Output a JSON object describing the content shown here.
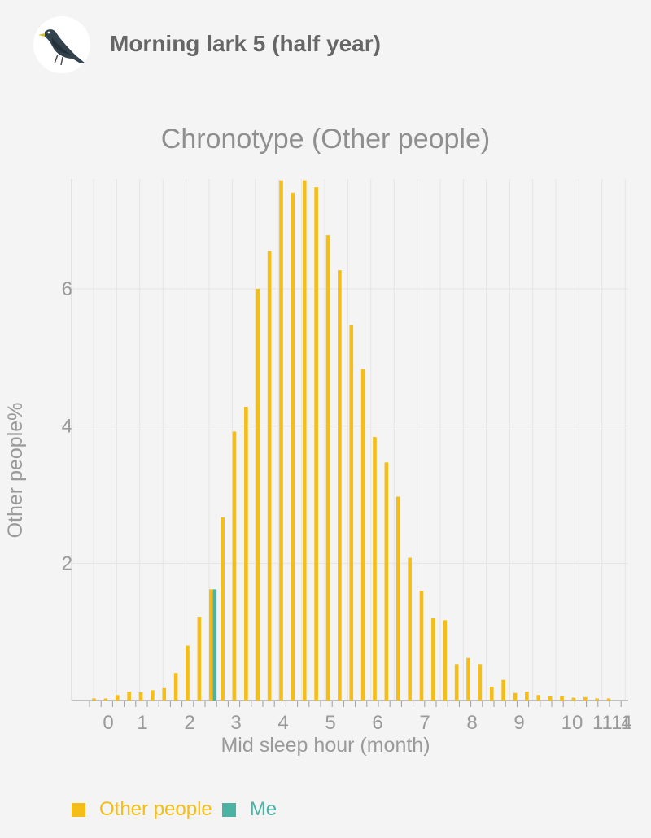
{
  "header": {
    "title": "Morning lark 5 (half year)",
    "avatar_icon": "blackbird-icon"
  },
  "colors": {
    "other": "#f5bd17",
    "me": "#4cb3a4",
    "text": "#9a9a9a",
    "grid": "#e4e4e4"
  },
  "chart_data": {
    "type": "bar",
    "title": "Chronotype (Other people)",
    "xlabel": "Mid sleep hour (month)",
    "ylabel": "Other people%",
    "ylim": [
      0,
      7.6
    ],
    "yticks": [
      2,
      4,
      6
    ],
    "xticks": [
      "0",
      "1",
      "2",
      "3",
      "4",
      "5",
      "6",
      "7",
      "8",
      "9",
      "10",
      "1111",
      "4"
    ],
    "grid": true,
    "legend_position": "bottom-left",
    "series": [
      {
        "name": "Other people",
        "values": [
          0.03,
          0.03,
          0.08,
          0.13,
          0.12,
          0.15,
          0.18,
          0.4,
          0.8,
          1.22,
          1.62,
          2.67,
          3.92,
          4.28,
          6.0,
          6.55,
          7.58,
          7.4,
          7.58,
          7.48,
          6.78,
          6.27,
          5.47,
          4.83,
          3.84,
          3.47,
          2.97,
          2.08,
          1.6,
          1.2,
          1.17,
          0.53,
          0.62,
          0.53,
          0.2,
          0.3,
          0.11,
          0.13,
          0.08,
          0.06,
          0.06,
          0.04,
          0.05,
          0.03,
          0.03
        ]
      },
      {
        "name": "Me",
        "values": [
          0,
          0,
          0,
          0,
          0,
          0,
          0,
          0,
          0,
          0,
          1.62,
          0,
          0,
          0,
          0,
          0,
          0,
          0,
          0,
          0,
          0,
          0,
          0,
          0,
          0,
          0,
          0,
          0,
          0,
          0,
          0,
          0,
          0,
          0,
          0,
          0,
          0,
          0,
          0,
          0,
          0,
          0,
          0,
          0,
          0
        ]
      }
    ]
  },
  "legend": {
    "other_label": "Other people",
    "me_label": "Me"
  }
}
